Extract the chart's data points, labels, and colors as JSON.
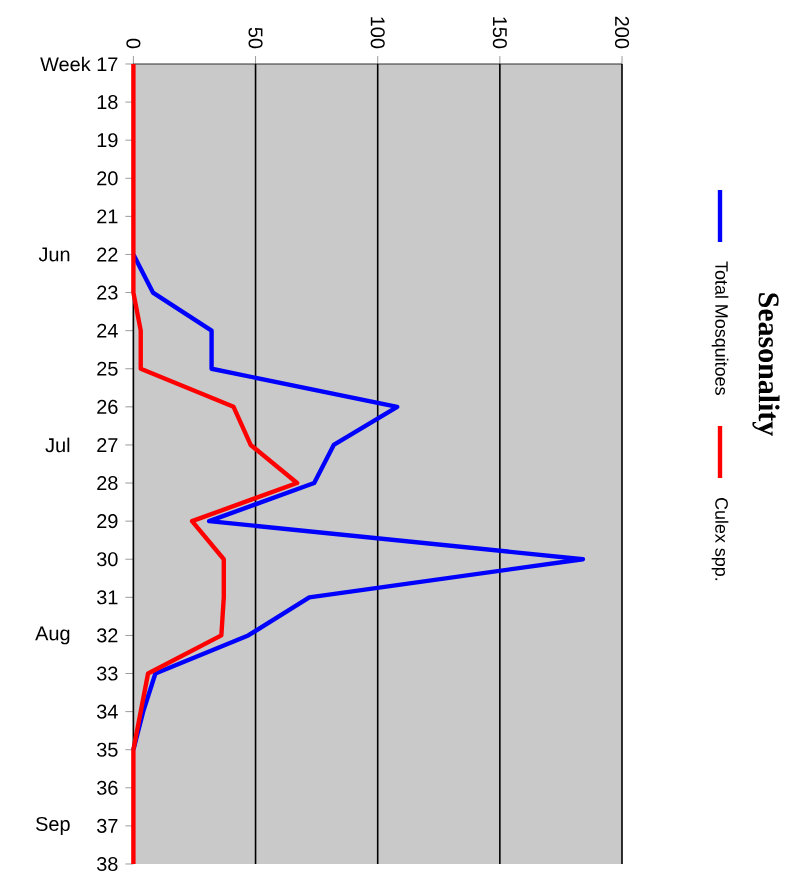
{
  "chart_data": {
    "type": "line",
    "title": "Seasonality",
    "orientation": "horizontal",
    "categories": [
      "Week 17",
      "18",
      "19",
      "20",
      "21",
      "22",
      "23",
      "24",
      "25",
      "26",
      "27",
      "28",
      "29",
      "30",
      "31",
      "32",
      "33",
      "34",
      "35",
      "36",
      "37",
      "38"
    ],
    "series": [
      {
        "name": "Total Mosquitoes",
        "color": "#0000ff",
        "values": [
          null,
          null,
          null,
          null,
          null,
          0,
          8,
          32,
          32,
          108,
          82,
          74,
          31,
          184,
          72,
          47,
          9,
          4,
          0,
          null,
          null,
          null
        ]
      },
      {
        "name": "Culex spp.",
        "color": "#ff0000",
        "values": [
          0,
          0,
          0,
          0,
          0,
          0,
          0,
          3,
          3,
          41,
          48,
          67,
          24,
          37,
          37,
          36,
          6,
          3,
          0,
          0,
          0,
          0
        ]
      }
    ],
    "xlim": [
      0,
      200
    ],
    "xticks": [
      0,
      50,
      100,
      150,
      200
    ],
    "grid": "x",
    "legend": "right",
    "annotations": [
      "Jun",
      "Jul",
      "Aug",
      "Sep"
    ]
  }
}
